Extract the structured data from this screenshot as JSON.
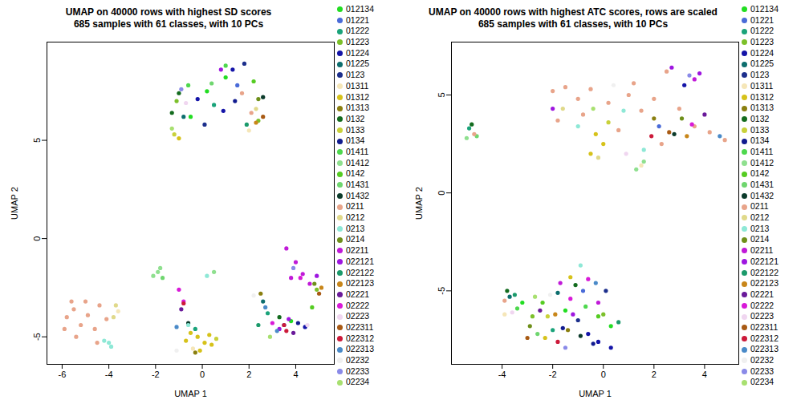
{
  "chart_data": [
    {
      "type": "scatter",
      "title": "UMAP on 40000 rows with highest SD scores",
      "subtitle": "685 samples with 61 classes, with 10 PCs",
      "x_label": "UMAP 1",
      "y_label": "UMAP 2",
      "xlim": [
        -6.65,
        5.65
      ],
      "xticks": [
        -6,
        -4,
        -2,
        0,
        2,
        4
      ],
      "ylim": [
        -6.4,
        10
      ],
      "yticks": [
        -5,
        0,
        5
      ],
      "legend": "right",
      "series": [
        {
          "name": "012134",
          "color": "#22dd22",
          "x": [
            0.2,
            1.0,
            -0.5,
            3.8
          ],
          "y": [
            7.5,
            8.2,
            6.2,
            -4.2
          ]
        },
        {
          "name": "01221",
          "color": "#4a6bd8",
          "x": [
            1.5,
            3.5
          ],
          "y": [
            7.8,
            -4.4
          ]
        },
        {
          "name": "01222",
          "color": "#1aa37a",
          "x": [
            0.5,
            -0.3,
            2.8
          ],
          "y": [
            6.8,
            -4.6,
            -3.8
          ]
        },
        {
          "name": "01223",
          "color": "#7cc02a",
          "x": [
            -1.1,
            2.4,
            4.9
          ],
          "y": [
            7.0,
            6.0,
            -2.6
          ]
        },
        {
          "name": "01224",
          "color": "#1414a8",
          "x": [
            1.3,
            0.9,
            -0.2,
            4.4
          ],
          "y": [
            8.6,
            6.5,
            7.1,
            -4.5
          ]
        },
        {
          "name": "01225",
          "color": "#0d6e6e",
          "x": [
            -0.8,
            2.6
          ],
          "y": [
            6.2,
            -3.2
          ]
        },
        {
          "name": "0123",
          "color": "#1c2f8c",
          "x": [
            0.1,
            1.8
          ],
          "y": [
            5.8,
            8.9
          ]
        },
        {
          "name": "01311",
          "color": "#f5e6b8",
          "x": [
            2.0,
            -3.6,
            -0.4
          ],
          "y": [
            5.5,
            -3.7,
            -5.6
          ]
        },
        {
          "name": "01312",
          "color": "#d6c21a",
          "x": [
            -0.2,
            0.1,
            -0.5,
            0.3,
            -0.1,
            0.4,
            -0.7,
            -1.0
          ],
          "y": [
            -5.0,
            -5.3,
            -4.8,
            -4.9,
            -5.7,
            -5.4,
            -5.2,
            5.1
          ]
        },
        {
          "name": "01313",
          "color": "#8a7f10",
          "x": [
            -0.3,
            2.5
          ],
          "y": [
            -5.8,
            -2.8
          ]
        },
        {
          "name": "0132",
          "color": "#136b1e",
          "x": [
            -1.3,
            -1.0,
            3.3
          ],
          "y": [
            6.4,
            7.4,
            -4.0
          ]
        },
        {
          "name": "0133",
          "color": "#c9d13a",
          "x": [
            0.6,
            -1.2
          ],
          "y": [
            -5.1,
            5.3
          ]
        },
        {
          "name": "0134",
          "color": "#111b8f",
          "x": [
            1.4,
            4.1
          ],
          "y": [
            7.0,
            -4.3
          ]
        },
        {
          "name": "01411",
          "color": "#4ed84e",
          "x": [
            1.0,
            -0.6
          ],
          "y": [
            8.8,
            7.8
          ]
        },
        {
          "name": "01412",
          "color": "#8fe08f",
          "x": [
            -1.9,
            -2.1,
            -1.8,
            0.5
          ],
          "y": [
            -1.7,
            -1.9,
            -1.5,
            -1.7
          ]
        },
        {
          "name": "0142",
          "color": "#55cc22",
          "x": [
            2.2,
            4.7
          ],
          "y": [
            8.0,
            -3.5
          ]
        },
        {
          "name": "01431",
          "color": "#6fd66f",
          "x": [
            0.4,
            -1.7
          ],
          "y": [
            7.9,
            -2.0
          ]
        },
        {
          "name": "01432",
          "color": "#0b3b2b",
          "x": [
            2.6,
            -0.6
          ],
          "y": [
            7.2,
            -4.3
          ]
        },
        {
          "name": "0211",
          "color": "#e8a48a",
          "x": [
            -5.8,
            -5.5,
            -5.2,
            -4.9,
            -4.6,
            -5.9,
            -5.4,
            -4.4,
            -4.1,
            -5.0,
            -5.6,
            -4.5,
            2.1,
            1.7
          ],
          "y": [
            -4.0,
            -3.6,
            -4.4,
            -3.9,
            -4.6,
            -4.6,
            -5.0,
            -3.4,
            -4.1,
            -3.2,
            -3.2,
            -5.3,
            6.4,
            7.4
          ]
        },
        {
          "name": "0212",
          "color": "#e0d98a",
          "x": [
            -3.8,
            -3.7,
            2.3
          ],
          "y": [
            -4.0,
            -3.4,
            6.6
          ]
        },
        {
          "name": "0213",
          "color": "#8ee8d6",
          "x": [
            -4.2,
            -3.9,
            -4.0,
            0.2,
            -0.6
          ],
          "y": [
            -5.2,
            -5.5,
            -5.3,
            -1.9,
            -4.4
          ]
        },
        {
          "name": "0214",
          "color": "#6e8f1a",
          "x": [
            2.4,
            4.8
          ],
          "y": [
            7.1,
            -2.3
          ]
        },
        {
          "name": "02211",
          "color": "#c01ad8",
          "x": [
            3.6,
            4.0,
            4.3,
            3.8,
            4.6
          ],
          "y": [
            -0.5,
            -1.2,
            -1.8,
            -2.0,
            -2.3
          ]
        },
        {
          "name": "022121",
          "color": "#9e16e0",
          "x": [
            3.3,
            3.7,
            4.9,
            0.8
          ],
          "y": [
            -4.6,
            -4.1,
            -1.9,
            8.6
          ]
        },
        {
          "name": "022122",
          "color": "#1b9a6b",
          "x": [
            2.4,
            1.9
          ],
          "y": [
            -4.4,
            5.8
          ]
        },
        {
          "name": "022123",
          "color": "#c8861a",
          "x": [
            5.1,
            2.3
          ],
          "y": [
            -2.5,
            5.9
          ]
        },
        {
          "name": "02221",
          "color": "#6a1a9a",
          "x": [
            3.9,
            -0.9
          ],
          "y": [
            -4.8,
            -3.6
          ]
        },
        {
          "name": "02222",
          "color": "#d81ad8",
          "x": [
            -1.0,
            -0.8,
            4.2,
            3.0
          ],
          "y": [
            -2.6,
            -3.2,
            -2.0,
            -4.3
          ]
        },
        {
          "name": "02223",
          "color": "#f0d6f0",
          "x": [
            -0.7,
            4.5
          ],
          "y": [
            6.9,
            -4.4
          ]
        },
        {
          "name": "022311",
          "color": "#a85a14",
          "x": [
            2.6,
            5.0
          ],
          "y": [
            6.2,
            -2.8
          ]
        },
        {
          "name": "022312",
          "color": "#cc1a3a",
          "x": [
            3.6,
            3.5,
            -0.8
          ],
          "y": [
            -4.7,
            -4.4,
            -3.3
          ]
        },
        {
          "name": "022313",
          "color": "#4a8ac8",
          "x": [
            2.7,
            3.2,
            -1.1
          ],
          "y": [
            -3.5,
            -4.7,
            -4.5
          ]
        },
        {
          "name": "02232",
          "color": "#f0f0f0",
          "x": [
            -1.1,
            2.2
          ],
          "y": [
            -5.7,
            -2.9
          ]
        },
        {
          "name": "02233",
          "color": "#8a8ae8",
          "x": [
            -0.9,
            3.9
          ],
          "y": [
            7.6,
            -1.5
          ]
        },
        {
          "name": "02234",
          "color": "#a8e070",
          "x": [
            -1.3,
            2.9
          ],
          "y": [
            5.6,
            -5.0
          ]
        }
      ]
    },
    {
      "type": "scatter",
      "title": "UMAP on 40000 rows with highest ATC scores, rows are scaled",
      "subtitle": "685 samples with 61 classes, with 10 PCs",
      "x_label": "UMAP 1",
      "y_label": "UMAP 2",
      "xlim": [
        -6.0,
        5.35
      ],
      "xticks": [
        -4,
        -2,
        0,
        2,
        4
      ],
      "ylim": [
        -8.75,
        7.7
      ],
      "yticks": [
        -5,
        0,
        5
      ],
      "legend": "right",
      "series": [
        {
          "name": "012134",
          "color": "#22dd22",
          "x": [
            -1.5,
            0.3,
            -3.2
          ],
          "y": [
            -6.0,
            -6.8,
            -5.6
          ]
        },
        {
          "name": "01221",
          "color": "#4a6bd8",
          "x": [
            -0.8,
            2.2
          ],
          "y": [
            -5.0,
            3.4
          ]
        },
        {
          "name": "01222",
          "color": "#1aa37a",
          "x": [
            -2.0,
            -5.3
          ],
          "y": [
            -7.0,
            3.3
          ]
        },
        {
          "name": "01223",
          "color": "#7cc02a",
          "x": [
            -2.8,
            0.0
          ],
          "y": [
            -6.3,
            -6.2
          ]
        },
        {
          "name": "01224",
          "color": "#1414a8",
          "x": [
            -0.2,
            0.3,
            -0.6,
            3.2
          ],
          "y": [
            -7.6,
            -7.9,
            -7.2,
            5.5
          ]
        },
        {
          "name": "01225",
          "color": "#0d6e6e",
          "x": [
            -1.8,
            -3.7
          ],
          "y": [
            -5.1,
            -5.3
          ]
        },
        {
          "name": "0123",
          "color": "#1c2f8c",
          "x": [
            -1.0,
            0.1
          ],
          "y": [
            -6.5,
            -5.0
          ]
        },
        {
          "name": "01311",
          "color": "#f5e6b8",
          "x": [
            1.5,
            -3.9
          ],
          "y": [
            1.4,
            -6.2
          ]
        },
        {
          "name": "01312",
          "color": "#d6c21a",
          "x": [
            -0.3,
            0.0,
            -0.5,
            -2.3,
            -1.3
          ],
          "y": [
            3.0,
            2.5,
            2.0,
            -7.4,
            -4.3
          ]
        },
        {
          "name": "01313",
          "color": "#8a7f10",
          "x": [
            -1.4,
            2.0
          ],
          "y": [
            -7.0,
            3.8
          ]
        },
        {
          "name": "0132",
          "color": "#136b1e",
          "x": [
            -3.8,
            -1.1,
            -5.2
          ],
          "y": [
            -5.0,
            -4.7,
            3.5
          ]
        },
        {
          "name": "0133",
          "color": "#c9d13a",
          "x": [
            -2.2,
            0.2
          ],
          "y": [
            -6.3,
            3.6
          ]
        },
        {
          "name": "0134",
          "color": "#111b8f",
          "x": [
            -0.4,
            -1.6
          ],
          "y": [
            -7.7,
            -6.9
          ]
        },
        {
          "name": "01411",
          "color": "#4ed84e",
          "x": [
            -3.4,
            -0.7
          ],
          "y": [
            -5.9,
            -5.8
          ]
        },
        {
          "name": "01412",
          "color": "#8fe08f",
          "x": [
            1.3,
            1.6,
            -5.4
          ],
          "y": [
            1.2,
            1.6,
            2.8
          ]
        },
        {
          "name": "0142",
          "color": "#55cc22",
          "x": [
            -2.4,
            -0.2
          ],
          "y": [
            -5.6,
            -6.3
          ]
        },
        {
          "name": "01431",
          "color": "#6fd66f",
          "x": [
            -5.0,
            -2.6
          ],
          "y": [
            2.9,
            -7.2
          ]
        },
        {
          "name": "01432",
          "color": "#0b3b2b",
          "x": [
            -0.9,
            2.8
          ],
          "y": [
            -7.3,
            3.0
          ]
        },
        {
          "name": "0211",
          "color": "#e8a48a",
          "x": [
            -2.0,
            -1.5,
            -1.0,
            -0.5,
            0.2,
            1.0,
            1.5,
            2.0,
            2.5,
            3.0,
            3.6,
            4.2,
            4.8,
            -1.8,
            -0.8,
            0.6,
            2.3,
            1.2,
            -5.1,
            -3.9
          ],
          "y": [
            5.2,
            5.4,
            4.8,
            5.3,
            4.6,
            5.0,
            4.2,
            4.8,
            6.2,
            4.3,
            3.4,
            3.1,
            2.7,
            3.7,
            4.0,
            3.2,
            2.5,
            5.6,
            3.0,
            -5.5
          ]
        },
        {
          "name": "0212",
          "color": "#e0d98a",
          "x": [
            -0.2,
            -1.6
          ],
          "y": [
            1.8,
            4.3
          ]
        },
        {
          "name": "0213",
          "color": "#8ee8d6",
          "x": [
            -1.0,
            0.8,
            -0.9,
            1.6
          ],
          "y": [
            3.4,
            4.2,
            -3.7,
            2.2
          ]
        },
        {
          "name": "0214",
          "color": "#6e8f1a",
          "x": [
            -2.9,
            3.1
          ],
          "y": [
            -6.8,
            3.8
          ]
        },
        {
          "name": "02211",
          "color": "#c01ad8",
          "x": [
            3.6,
            -1.7,
            -0.2
          ],
          "y": [
            5.8,
            -4.6,
            -5.6
          ]
        },
        {
          "name": "022121",
          "color": "#9e16e0",
          "x": [
            2.7,
            3.8,
            -2.0,
            -1.2
          ],
          "y": [
            6.4,
            6.1,
            4.3,
            -6.2
          ]
        },
        {
          "name": "022122",
          "color": "#1b9a6b",
          "x": [
            -3.5,
            0.6
          ],
          "y": [
            -5.2,
            -6.6
          ]
        },
        {
          "name": "022123",
          "color": "#c8861a",
          "x": [
            -1.9,
            3.3
          ],
          "y": [
            -6.2,
            2.9
          ]
        },
        {
          "name": "02221",
          "color": "#6a1a9a",
          "x": [
            -2.5,
            4.0
          ],
          "y": [
            -6.0,
            4.0
          ]
        },
        {
          "name": "02222",
          "color": "#d81ad8",
          "x": [
            -1.3,
            3.5,
            -0.6
          ],
          "y": [
            -5.4,
            3.5,
            -4.4
          ]
        },
        {
          "name": "02223",
          "color": "#f0d6f0",
          "x": [
            -3.6,
            0.9
          ],
          "y": [
            -6.1,
            2.0
          ]
        },
        {
          "name": "022311",
          "color": "#a85a14",
          "x": [
            -3.0,
            2.6
          ],
          "y": [
            -7.4,
            3.1
          ]
        },
        {
          "name": "022312",
          "color": "#cc1a3a",
          "x": [
            -1.8,
            1.9
          ],
          "y": [
            -7.6,
            2.9
          ]
        },
        {
          "name": "022313",
          "color": "#4a8ac8",
          "x": [
            -0.3,
            4.6
          ],
          "y": [
            -4.6,
            2.9
          ]
        },
        {
          "name": "02232",
          "color": "#f0f0f0",
          "x": [
            -2.1,
            0.4
          ],
          "y": [
            -5.2,
            5.5
          ]
        },
        {
          "name": "02233",
          "color": "#8a8ae8",
          "x": [
            -1.5,
            3.4
          ],
          "y": [
            -7.9,
            6.0
          ]
        },
        {
          "name": "02234",
          "color": "#a8e070",
          "x": [
            -2.7,
            -0.4
          ],
          "y": [
            -5.3,
            4.3
          ]
        }
      ]
    }
  ]
}
